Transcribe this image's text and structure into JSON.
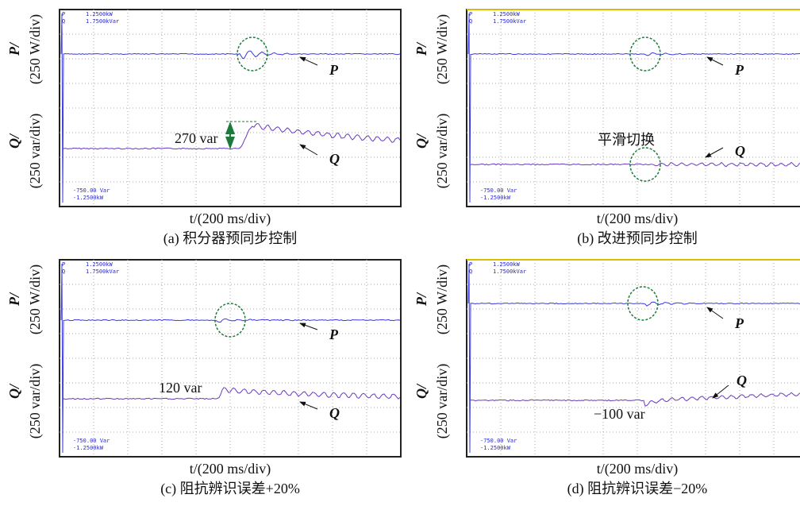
{
  "panels": [
    {
      "scope_labels": [
        "P",
        "Q",
        "1.2500kW",
        "1.7500kVar",
        "-750.00 Var",
        "-1.2500kW"
      ],
      "y_labels": [
        "P/",
        "(250 W/div)",
        "Q/",
        "(250 var/div)"
      ],
      "x_label": "t/(200 ms/div)",
      "caption": "(a) 积分器预同步控制",
      "annotations": [
        "P",
        "Q",
        "270 var"
      ]
    },
    {
      "scope_labels": [
        "P",
        "Q",
        "1.2500kW",
        "1.7500kVar",
        "-750.00 Var",
        "-1.2500kW"
      ],
      "y_labels": [
        "P/",
        "(250 W/div)",
        "Q/",
        "(250 var/div)"
      ],
      "x_label": "t/(200 ms/div)",
      "caption": "(b) 改进预同步控制",
      "annotations": [
        "P",
        "Q",
        "平滑切换"
      ]
    },
    {
      "scope_labels": [
        "P",
        "Q",
        "1.2500kW",
        "1.7500kVar",
        "-750.00 Var",
        "-1.2500kW"
      ],
      "y_labels": [
        "P/",
        "(250 W/div)",
        "Q/",
        "(250 var/div)"
      ],
      "x_label": "t/(200 ms/div)",
      "caption": "(c) 阻抗辨识误差+20%",
      "annotations": [
        "P",
        "Q",
        "120 var"
      ]
    },
    {
      "scope_labels": [
        "P",
        "Q",
        "1.2500kW",
        "1.7500kVar",
        "-750.00 Var",
        "-1.2500kW"
      ],
      "y_labels": [
        "P/",
        "(250 W/div)",
        "Q/",
        "(250 var/div)"
      ],
      "x_label": "t/(200 ms/div)",
      "caption": "(d) 阻抗辨识误差−20%",
      "annotations": [
        "P",
        "Q",
        "−100 var"
      ]
    }
  ]
}
